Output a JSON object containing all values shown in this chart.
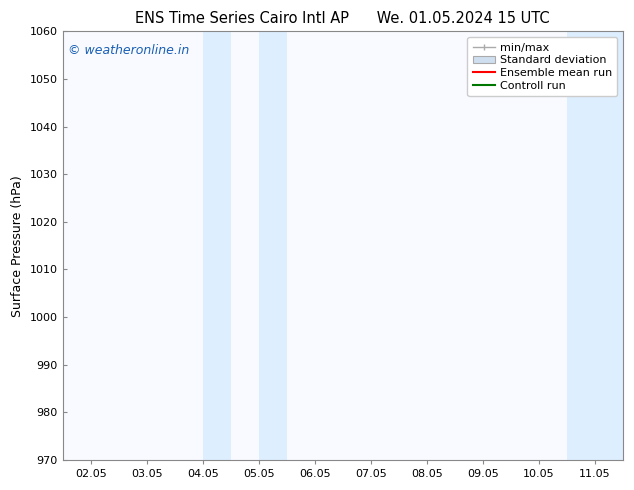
{
  "title_left": "ENS Time Series Cairo Intl AP",
  "title_right": "We. 01.05.2024 15 UTC",
  "ylabel": "Surface Pressure (hPa)",
  "ylim": [
    970,
    1060
  ],
  "yticks": [
    970,
    980,
    990,
    1000,
    1010,
    1020,
    1030,
    1040,
    1050,
    1060
  ],
  "xtick_labels": [
    "02.05",
    "03.05",
    "04.05",
    "05.05",
    "06.05",
    "07.05",
    "08.05",
    "09.05",
    "10.05",
    "11.05"
  ],
  "xtick_positions": [
    0,
    1,
    2,
    3,
    4,
    5,
    6,
    7,
    8,
    9
  ],
  "xlim": [
    -0.5,
    9.5
  ],
  "shaded_bands": [
    {
      "xmin": 2.0,
      "xmax": 2.5,
      "color": "#ddeeff"
    },
    {
      "xmin": 3.0,
      "xmax": 3.5,
      "color": "#ddeeff"
    },
    {
      "xmin": 8.5,
      "xmax": 9.0,
      "color": "#ddeeff"
    },
    {
      "xmin": 9.0,
      "xmax": 9.5,
      "color": "#ddeeff"
    }
  ],
  "watermark_text": "© weatheronline.in",
  "watermark_color": "#1a5fb4",
  "background_color": "#ffffff",
  "plot_bg_color": "#f8faff",
  "title_fontsize": 10.5,
  "axis_fontsize": 9,
  "tick_fontsize": 8,
  "legend_fontsize": 8,
  "minmax_color": "#aaaaaa",
  "std_color": "#d0dff0",
  "ensemble_color": "#ff0000",
  "control_color": "#007700"
}
